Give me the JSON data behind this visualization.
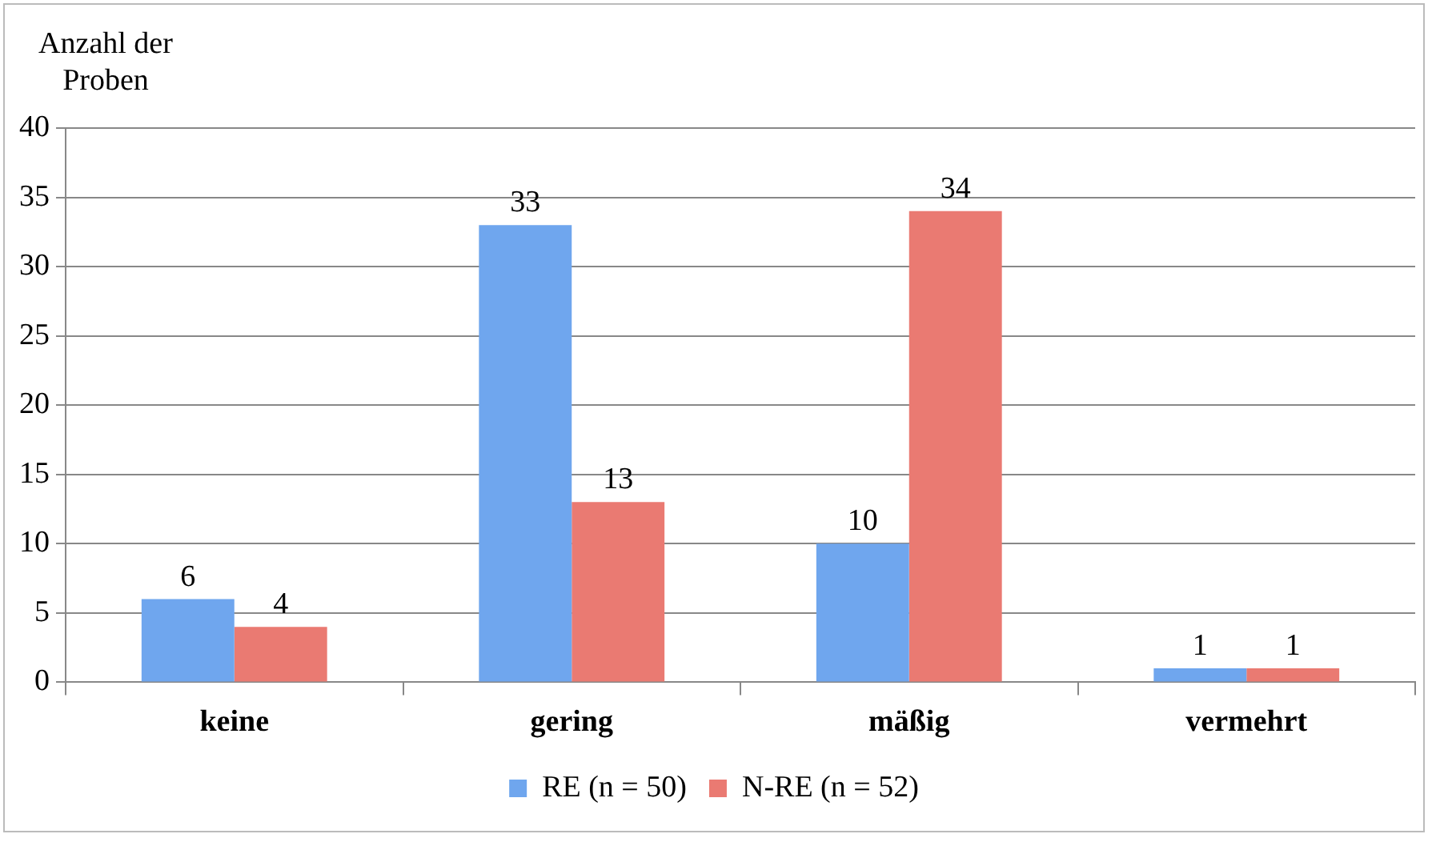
{
  "chart_data": {
    "type": "bar",
    "ylabel": "Anzahl der Proben",
    "categories": [
      "keine",
      "gering",
      "mäßig",
      "vermehrt"
    ],
    "series": [
      {
        "name": "RE (n = 50)",
        "color": "#6fa6ee",
        "values": [
          6,
          33,
          10,
          1
        ]
      },
      {
        "name": "N-RE (n = 52)",
        "color": "#ea7a72",
        "values": [
          4,
          13,
          34,
          1
        ]
      }
    ],
    "ylim": [
      0,
      40
    ],
    "yticks": [
      0,
      5,
      10,
      15,
      20,
      25,
      30,
      35,
      40
    ],
    "grid": "y",
    "legend": "bottom",
    "data_labels": true
  }
}
